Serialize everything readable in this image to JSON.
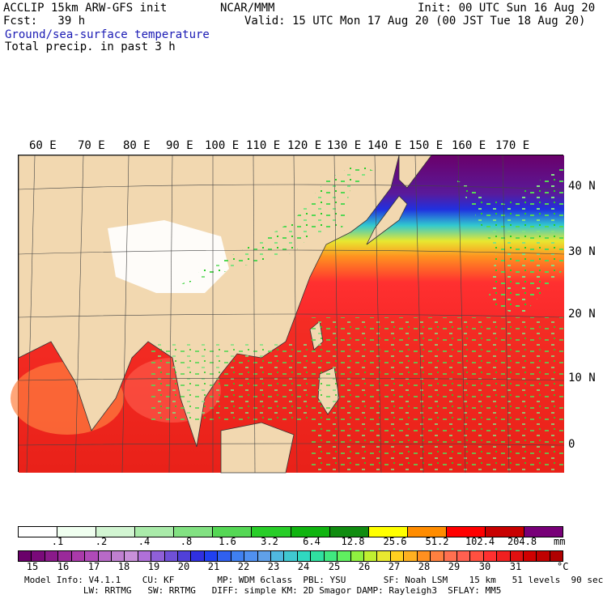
{
  "header": {
    "line1_left": "ACCLIP 15km ARW-GFS init",
    "line1_mid": "NCAR/MMM",
    "line1_right": "Init: 00 UTC Sun 16 Aug 20",
    "line2_left": "Fcst:   39 h",
    "line2_right": "Valid: 15 UTC Mon 17 Aug 20 (00 JST Tue 18 Aug 20)",
    "field1": "Ground/sea-surface temperature",
    "field2": "Total precip. in past 3 h"
  },
  "map": {
    "lon_labels": [
      "60 E",
      "70 E",
      "80 E",
      "90 E",
      "100 E",
      "110 E",
      "120 E",
      "130 E",
      "140 E",
      "150 E",
      "160 E",
      "170 E"
    ],
    "lat_labels": [
      "40 N",
      "30 N",
      "20 N",
      "10 N",
      "0"
    ]
  },
  "precip_scale": {
    "labels": [
      ".1",
      ".2",
      ".4",
      ".8",
      "1.6",
      "3.2",
      "6.4",
      "12.8",
      "25.6",
      "51.2",
      "102.4",
      "204.8"
    ],
    "unit": "mm",
    "colors": [
      "#ffffff",
      "#f0fff0",
      "#d2f5d2",
      "#aaebaa",
      "#82e182",
      "#55d755",
      "#28cd28",
      "#10b410",
      "#108c10",
      "#ffff00",
      "#ff8c00",
      "#ff0000",
      "#c80000",
      "#780078"
    ]
  },
  "temp_scale": {
    "labels": [
      "15",
      "16",
      "17",
      "18",
      "19",
      "20",
      "21",
      "22",
      "23",
      "24",
      "25",
      "26",
      "27",
      "28",
      "29",
      "30",
      "31"
    ],
    "unit": "°C",
    "colors": [
      "#6a006a",
      "#7a0a7a",
      "#8a1a8a",
      "#9a2a9a",
      "#aa3aaa",
      "#b04ab8",
      "#b86ac8",
      "#c080d0",
      "#c890d8",
      "#b070d8",
      "#9060d8",
      "#7050d8",
      "#5040d8",
      "#3030e0",
      "#2040f0",
      "#3060f0",
      "#4080f0",
      "#5090f0",
      "#60a0e8",
      "#50b8e0",
      "#40c8d0",
      "#30d8c0",
      "#30e0a0",
      "#40e880",
      "#60f060",
      "#90f040",
      "#c0f030",
      "#e8e830",
      "#ffd020",
      "#ffb020",
      "#ff9020",
      "#ff8040",
      "#ff7050",
      "#ff6050",
      "#ff5040",
      "#ff3030",
      "#f02020",
      "#e01010",
      "#d00000",
      "#c00000",
      "#b00000"
    ]
  },
  "footer": {
    "line1": "Model Info: V4.1.1    CU: KF        MP: WDM 6class  PBL: YSU       SF: Noah LSM    15 km   51 levels  90 sec",
    "line2": "           LW: RRTMG   SW: RRTMG   DIFF: simple KM: 2D Smagor DAMP: Rayleigh3  SFLAY: MM5"
  }
}
